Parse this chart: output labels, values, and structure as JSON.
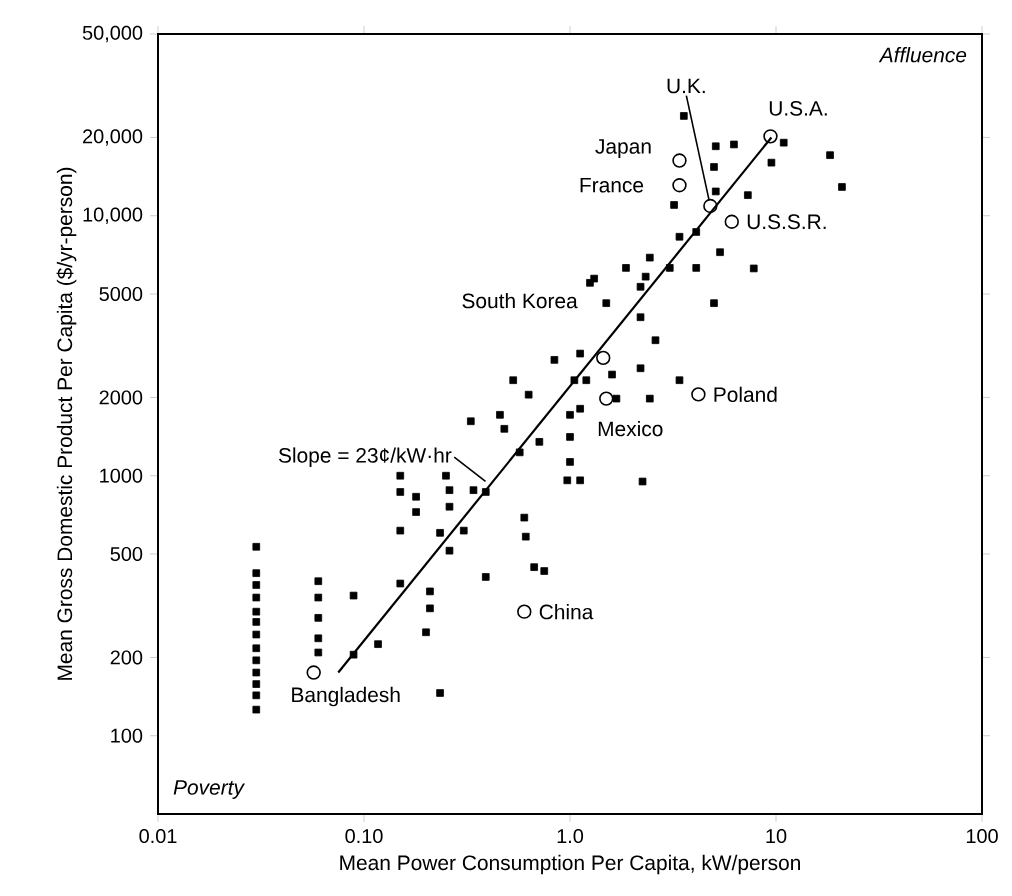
{
  "chart_data": {
    "type": "scatter",
    "xlabel": "Mean Power Consumption Per Capita, kW/person",
    "ylabel": "Mean Gross Domestic Product Per Capita ($/yr-person)",
    "log": "xy",
    "xlim": [
      0.01,
      100
    ],
    "ylim": [
      50,
      50000
    ],
    "xticks": [
      0.01,
      {
        "value": 0.1,
        "label": "0.10"
      },
      {
        "value": 1,
        "label": "1.0"
      },
      10,
      100
    ],
    "yticks": [
      100,
      200,
      500,
      1000,
      2000,
      5000,
      {
        "value": 10000,
        "label": "10,000"
      },
      {
        "value": 20000,
        "label": "20,000"
      },
      {
        "value": 50000,
        "label": "50,000"
      }
    ],
    "series": [
      {
        "marker": "square",
        "color": "#000000",
        "x": [
          0.03,
          0.03,
          0.03,
          0.03,
          0.03,
          0.03,
          0.03,
          0.03,
          0.03,
          0.03,
          0.03,
          0.03,
          0.03,
          0.06,
          0.06,
          0.06,
          0.06,
          0.06,
          0.234,
          0.089,
          0.117,
          0.089,
          0.15,
          0.15,
          0.15,
          0.15,
          0.179,
          0.179,
          0.209,
          0.209,
          0.2,
          0.234,
          0.25,
          0.26,
          0.26,
          0.26,
          0.305,
          0.34,
          0.39,
          0.39,
          0.33,
          0.457,
          0.48,
          0.57,
          0.71,
          0.6,
          0.61,
          0.67,
          0.75,
          1.0,
          1.0,
          1.0,
          0.97,
          1.12,
          1.12,
          1.31,
          1.5,
          1.12,
          0.84,
          0.53,
          0.63,
          1.2,
          3.57,
          5.1,
          6.25,
          5.0,
          10.9,
          9.5,
          18.3,
          20.9,
          3.2,
          5.1,
          7.3,
          5.35,
          3.4,
          4.1,
          1.87,
          2.44,
          2.33,
          3.05,
          4.1,
          7.8,
          1.25,
          2.2,
          2.2,
          5.0,
          2.6,
          2.2,
          1.6,
          1.05,
          3.4,
          1.68,
          2.44,
          2.25
        ],
        "values": [
          533,
          422,
          380,
          340,
          300,
          274,
          245,
          217,
          195,
          175,
          158,
          143,
          126,
          393,
          340,
          284,
          237,
          209,
          146,
          346,
          225,
          205,
          385,
          615,
          866,
          1000,
          830,
          725,
          359,
          309,
          250,
          603,
          1000,
          880,
          760,
          515,
          615,
          880,
          866,
          408,
          1620,
          1715,
          1515,
          1230,
          1350,
          690,
          583,
          445,
          430,
          1715,
          1410,
          1130,
          960,
          960,
          1810,
          5730,
          4610,
          2950,
          2790,
          2330,
          2050,
          2330,
          24200,
          18500,
          18800,
          15400,
          19100,
          16000,
          17100,
          12900,
          11000,
          12400,
          12000,
          7240,
          8300,
          8660,
          6300,
          6900,
          5830,
          6300,
          6300,
          6270,
          5520,
          5330,
          4070,
          4610,
          3320,
          2590,
          2450,
          2330,
          2330,
          1980,
          1980,
          950
        ]
      },
      {
        "marker": "circle",
        "color": "#000000",
        "x": [
          0.057,
          0.6,
          1.5,
          4.2,
          1.45,
          3.4,
          3.4,
          4.8,
          6.1,
          9.4
        ],
        "values": [
          175,
          300,
          1980,
          2055,
          2840,
          13100,
          16300,
          10900,
          9480,
          20200
        ]
      },
      {
        "type": "line",
        "marker": "none",
        "color": "#000000",
        "x": [
          0.075,
          9.5
        ],
        "values": [
          175,
          20000
        ]
      }
    ],
    "annotations": [
      {
        "text": "U.K.",
        "x": 4.8,
        "y": 10900
      },
      {
        "text": "Japan",
        "x": 3.4,
        "y": 16300
      },
      {
        "text": "France",
        "x": 3.4,
        "y": 13100
      },
      {
        "text": "U.S.A.",
        "x": 9.4,
        "y": 20200
      },
      {
        "text": "U.S.S.R.",
        "x": 6.1,
        "y": 9480
      },
      {
        "text": "South Korea",
        "x": 1.31,
        "y": 5730
      },
      {
        "text": "Poland",
        "x": 4.2,
        "y": 2055
      },
      {
        "text": "Mexico",
        "x": 1.5,
        "y": 1980
      },
      {
        "text": "China",
        "x": 0.6,
        "y": 300
      },
      {
        "text": "Bangladesh",
        "x": 0.057,
        "y": 175
      },
      {
        "text": "Slope = 23¢/kW·hr",
        "x": 0.41,
        "y": 920
      },
      "Affluence",
      "Poverty"
    ]
  }
}
